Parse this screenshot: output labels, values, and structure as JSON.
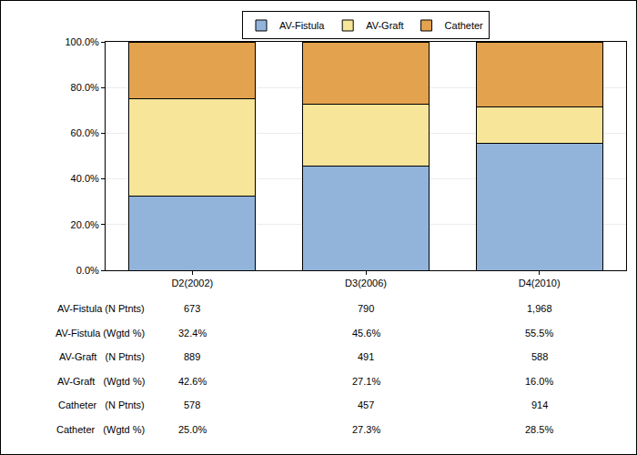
{
  "chart_data": {
    "type": "bar",
    "stacked": true,
    "grid": true,
    "legend": "top",
    "categories": [
      "D2(2002)",
      "D3(2006)",
      "D4(2010)"
    ],
    "series": [
      {
        "name": "AV-Fistula",
        "color": "#92b4db",
        "values": [
          32.4,
          45.6,
          55.5
        ]
      },
      {
        "name": "AV-Graft",
        "color": "#f7e59a",
        "values": [
          42.6,
          27.1,
          16.0
        ]
      },
      {
        "name": "Catheter",
        "color": "#e3a24e",
        "values": [
          25.0,
          27.3,
          28.5
        ]
      }
    ],
    "ylim": [
      0,
      100
    ],
    "yticks": [
      {
        "value": 0,
        "label": "0.0%"
      },
      {
        "value": 20,
        "label": "20.0%"
      },
      {
        "value": 40,
        "label": "40.0%"
      },
      {
        "value": 60,
        "label": "60.0%"
      },
      {
        "value": 80,
        "label": "80.0%"
      },
      {
        "value": 100,
        "label": "100.0%"
      }
    ]
  },
  "table": {
    "rows": [
      {
        "label": "AV-Fistula (N Ptnts)",
        "cells": [
          "673",
          "790",
          "1,968"
        ]
      },
      {
        "label": "AV-Fistula (Wgtd %)",
        "cells": [
          "32.4%",
          "45.6%",
          "55.5%"
        ]
      },
      {
        "label": "AV-Graft   (N Ptnts)",
        "cells": [
          "889",
          "491",
          "588"
        ]
      },
      {
        "label": "AV-Graft   (Wgtd %)",
        "cells": [
          "42.6%",
          "27.1%",
          "16.0%"
        ]
      },
      {
        "label": "Catheter   (N Ptnts)",
        "cells": [
          "578",
          "457",
          "914"
        ]
      },
      {
        "label": "Catheter   (Wgtd %)",
        "cells": [
          "25.0%",
          "27.3%",
          "28.5%"
        ]
      }
    ]
  }
}
